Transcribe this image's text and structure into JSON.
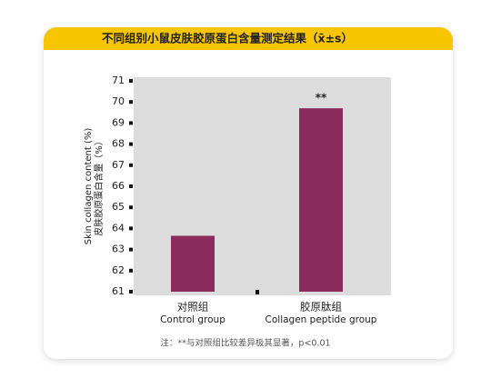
{
  "chart_data": {
    "type": "bar",
    "title": "不同组别小鼠皮肤胶原蛋白含量测定结果（x̄±s）",
    "ylabel": [
      "Skin collagen content (%)",
      "皮肤胶原蛋白含量（%）"
    ],
    "categories": [
      "对照组",
      "胶原肽组"
    ],
    "categories_en": [
      "Control group",
      "Collagen peptide group"
    ],
    "values": [
      63.65,
      69.7
    ],
    "value_labels": [
      null,
      "**"
    ],
    "color": "#8b2a5c",
    "ylim": [
      61,
      71
    ],
    "yticks": [
      61,
      62,
      63,
      64,
      65,
      66,
      67,
      68,
      69,
      70,
      71
    ],
    "note": "注：**与对照组比较差异极其显著，p<0.01"
  }
}
